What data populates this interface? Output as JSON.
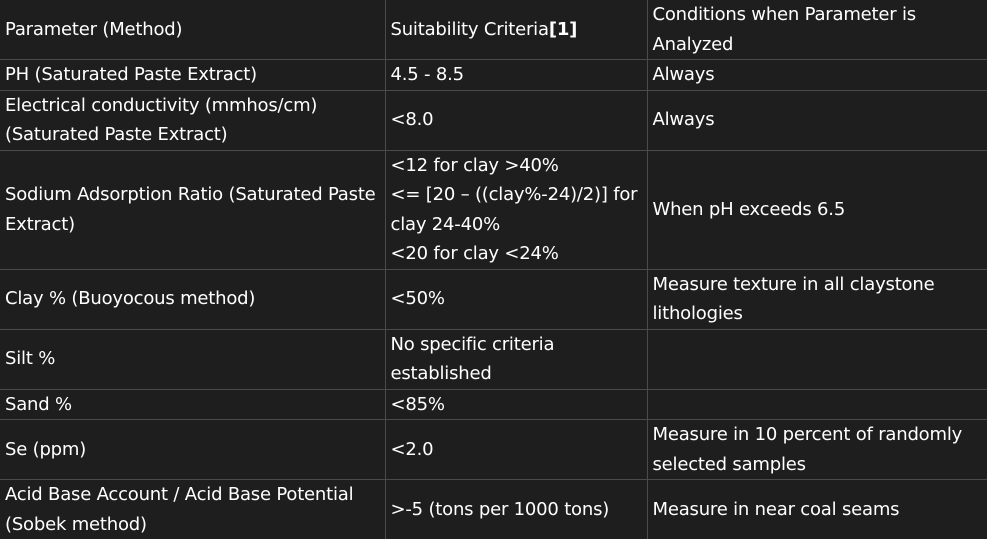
{
  "table": {
    "header": {
      "parameter": "Parameter (Method)",
      "criteria": "Suitability Criteria",
      "criteria_ref": "[1]",
      "conditions": "Conditions when Parameter is Analyzed"
    },
    "rows": [
      {
        "parameter": "PH (Saturated Paste Extract)",
        "criteria": [
          "4.5 - 8.5"
        ],
        "conditions": "Always"
      },
      {
        "parameter": "Electrical conductivity (mmhos/cm) (Saturated Paste Extract)",
        "criteria": [
          "<8.0"
        ],
        "conditions": "Always"
      },
      {
        "parameter": "Sodium Adsorption Ratio (Saturated Paste Extract)",
        "criteria": [
          "<12 for clay >40%",
          "<= [20 – ((clay%-24)/2)] for clay 24-40%",
          "<20 for clay <24%"
        ],
        "conditions": "When pH exceeds 6.5"
      },
      {
        "parameter": "Clay % (Buoyocous method)",
        "criteria": [
          "<50%"
        ],
        "conditions": "Measure texture in all claystone lithologies"
      },
      {
        "parameter": "Silt %",
        "criteria": [
          "No specific criteria established"
        ],
        "conditions": ""
      },
      {
        "parameter": "Sand %",
        "criteria": [
          "<85%"
        ],
        "conditions": ""
      },
      {
        "parameter": "Se (ppm)",
        "criteria": [
          "<2.0"
        ],
        "conditions": "Measure in 10 percent of randomly selected samples"
      },
      {
        "parameter": "Acid Base Account / Acid Base Potential (Sobek method)",
        "criteria": [
          ">-5 (tons per 1000 tons)"
        ],
        "conditions": "Measure in near coal seams"
      }
    ]
  }
}
